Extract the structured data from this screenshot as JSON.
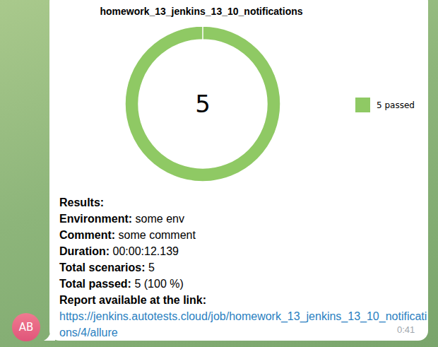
{
  "chart_data": {
    "type": "donut",
    "title": "homework_13_jenkins_13_10_notifications",
    "categories": [
      "5 passed"
    ],
    "values": [
      5
    ],
    "colors": [
      "#8fc964"
    ],
    "total": 5,
    "legend": "right"
  },
  "message": {
    "heading": "Results:",
    "fields": [
      {
        "label": "Environment:",
        "value": "some env"
      },
      {
        "label": "Comment:",
        "value": "some comment"
      },
      {
        "label": "Duration:",
        "value": "00:00:12.139"
      },
      {
        "label": "Total scenarios:",
        "value": "5"
      },
      {
        "label": "Total passed:",
        "value": "5 (100 %)"
      }
    ],
    "link_label": "Report available at the link:",
    "link": "https://jenkins.autotests.cloud/job/homework_13_jenkins_13_10_notifications/4/allure",
    "time": "0:41",
    "avatar": "AB"
  }
}
